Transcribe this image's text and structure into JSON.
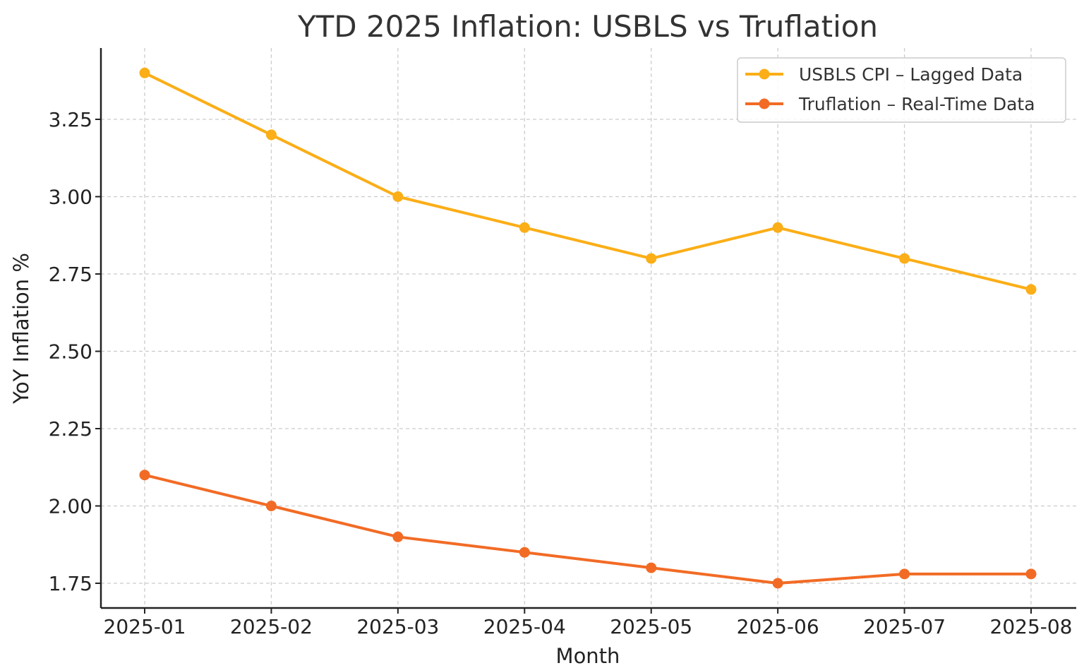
{
  "chart_data": {
    "type": "line",
    "title": "YTD 2025 Inflation: USBLS vs Truflation",
    "xlabel": "Month",
    "ylabel": "YoY Inflation %",
    "categories": [
      "2025-01",
      "2025-02",
      "2025-03",
      "2025-04",
      "2025-05",
      "2025-06",
      "2025-07",
      "2025-08"
    ],
    "yticks": [
      "1.75",
      "2.00",
      "2.25",
      "2.50",
      "2.75",
      "3.00",
      "3.25"
    ],
    "ylim": [
      1.68,
      3.48
    ],
    "grid": true,
    "legend_position": "top-right",
    "series": [
      {
        "name": "USBLS CPI – Lagged Data",
        "color": "#FBAE17",
        "marker": "circle",
        "values": [
          3.4,
          3.2,
          3.0,
          2.9,
          2.8,
          2.9,
          2.8,
          2.7
        ]
      },
      {
        "name": "Truflation – Real-Time Data",
        "color": "#F26B25",
        "marker": "circle",
        "values": [
          2.1,
          2.0,
          1.9,
          1.85,
          1.8,
          1.75,
          1.78,
          1.78
        ]
      }
    ]
  }
}
